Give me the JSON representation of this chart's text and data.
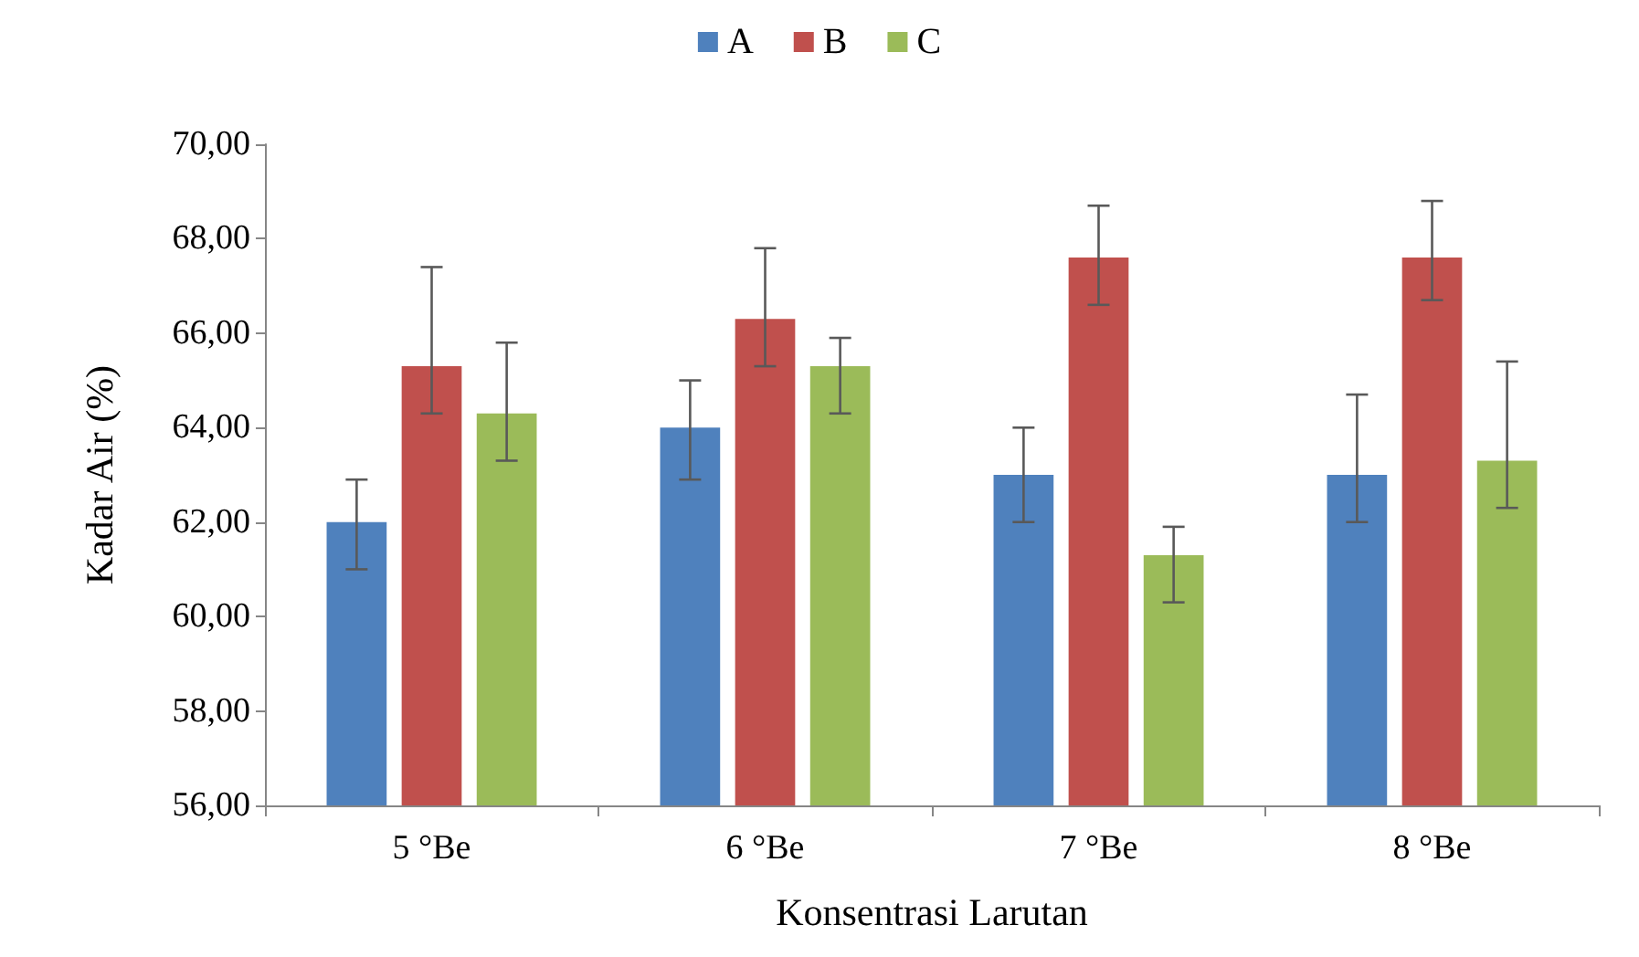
{
  "chart_data": {
    "type": "bar",
    "xlabel": "Konsentrasi Larutan",
    "ylabel": "Kadar Air (%)",
    "categories": [
      "5 °Be",
      "6 °Be",
      "7 °Be",
      "8 °Be"
    ],
    "series": [
      {
        "name": "A",
        "color": "#4f81bd",
        "values": [
          62.0,
          64.0,
          63.0,
          63.0
        ],
        "errors": [
          [
            61.0,
            62.9
          ],
          [
            62.9,
            65.0
          ],
          [
            62.0,
            64.0
          ],
          [
            62.0,
            64.7
          ]
        ]
      },
      {
        "name": "B",
        "color": "#c0504d",
        "values": [
          65.3,
          66.3,
          67.6,
          67.6
        ],
        "errors": [
          [
            64.3,
            67.4
          ],
          [
            65.3,
            67.8
          ],
          [
            66.6,
            68.7
          ],
          [
            66.7,
            68.8
          ]
        ]
      },
      {
        "name": "C",
        "color": "#9bbb59",
        "values": [
          64.3,
          65.3,
          61.3,
          63.3
        ],
        "errors": [
          [
            63.3,
            65.8
          ],
          [
            64.3,
            65.9
          ],
          [
            60.3,
            61.9
          ],
          [
            62.3,
            65.4
          ]
        ]
      }
    ],
    "ylim": [
      56,
      70
    ],
    "yticks": [
      {
        "value": 56,
        "label": "56,00"
      },
      {
        "value": 58,
        "label": "58,00"
      },
      {
        "value": 60,
        "label": "60,00"
      },
      {
        "value": 62,
        "label": "62,00"
      },
      {
        "value": 64,
        "label": "64,00"
      },
      {
        "value": 66,
        "label": "66,00"
      },
      {
        "value": 68,
        "label": "68,00"
      },
      {
        "value": 70,
        "label": "70,00"
      }
    ],
    "grid": false,
    "legend": "top"
  }
}
